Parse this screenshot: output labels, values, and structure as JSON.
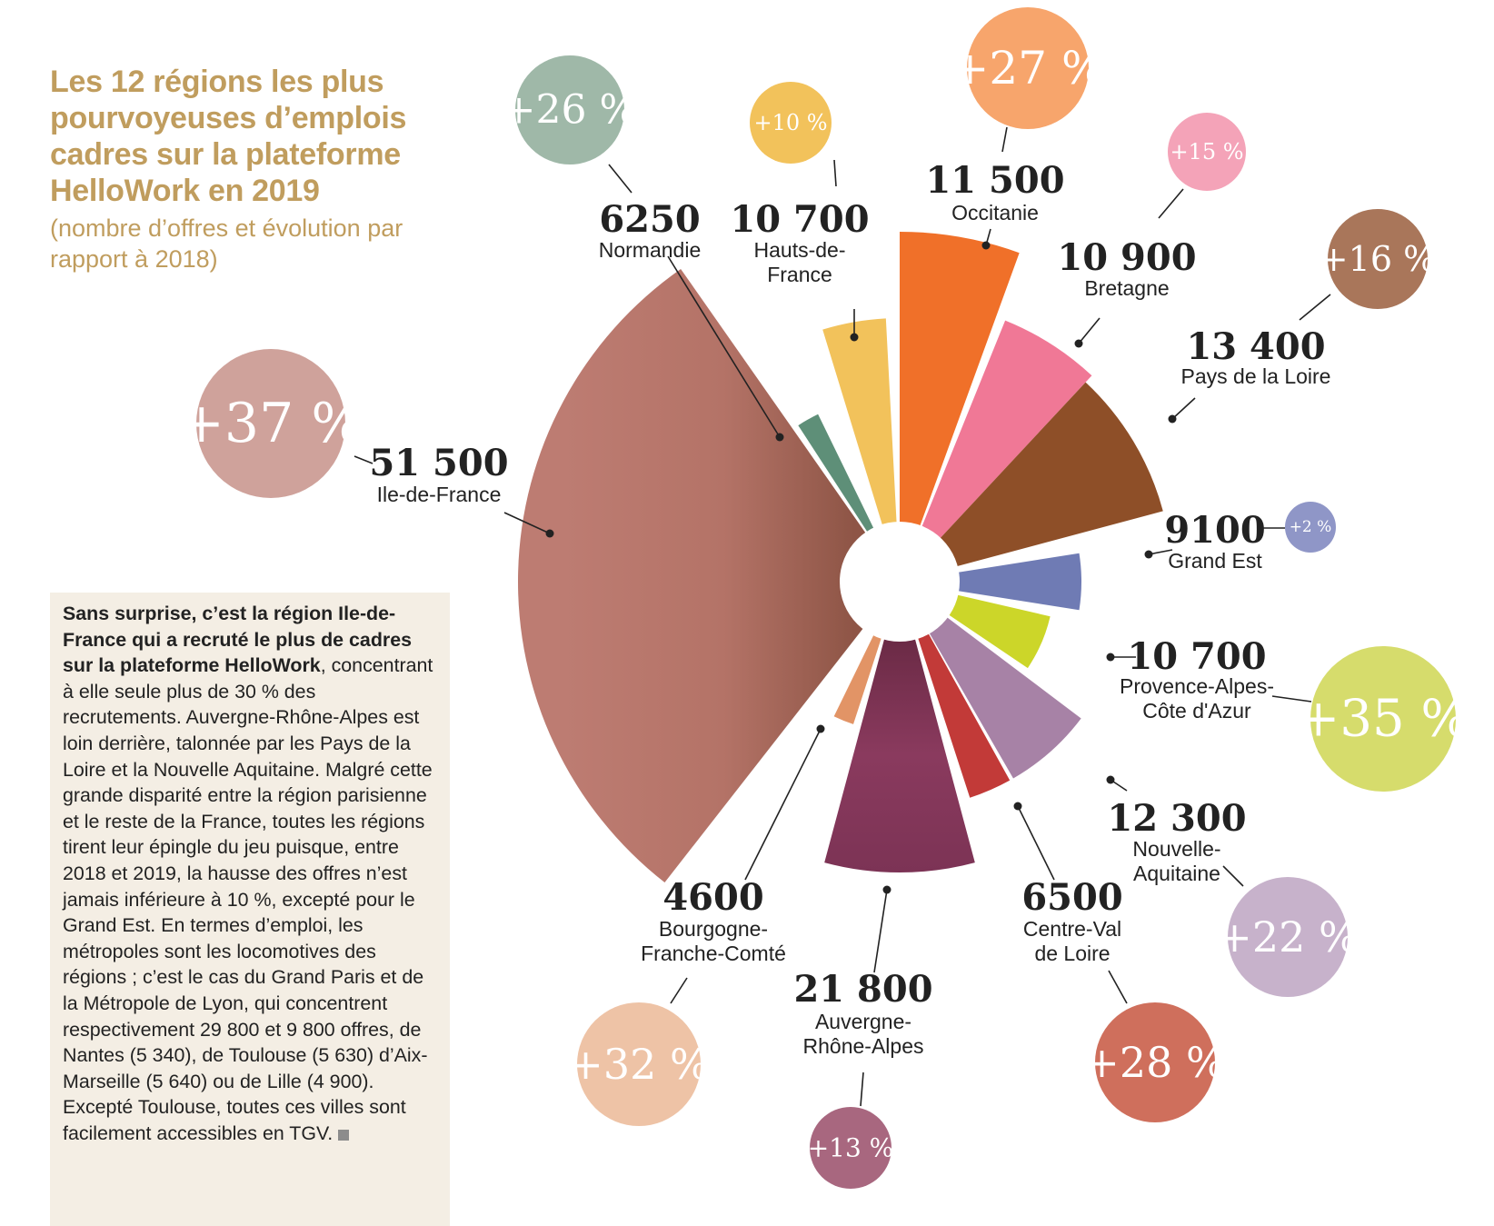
{
  "header": {
    "title": "Les 12 régions les plus pourvoyeuses d’emplois cadres sur la plateforme HelloWork en 2019",
    "subtitle": "(nombre d’offres et évolution par rapport à 2018)"
  },
  "textbox": {
    "lead": "Sans surprise, c’est la région Ile-de-France qui a recruté le plus de cadres sur la plateforme HelloWork",
    "body": ", concentrant à elle seule plus de 30 % des recrutements. Auvergne-Rhône-Alpes est loin derrière, talonnée par les Pays de la Loire et la Nouvelle Aquitaine. Malgré cette grande disparité entre la région parisienne et le reste de la France, toutes les régions tirent leur épingle du jeu puisque, entre 2018 et 2019, la hausse des offres n’est jamais inférieure à 10 %, excepté pour le Grand Est. En termes d’emploi, les métropoles sont les locomotives des régions ; c’est le cas du Grand Paris et de la Métropole de Lyon, qui concentrent respectivement 29 800 et 9 800 offres, de Nantes (5 340), de Toulouse (5 630) d’Aix-Marseille (5 640) ou de Lille (4 900). Excepté Toulouse, toutes ces villes sont facilement accessibles en TGV."
  },
  "chart_data": {
    "type": "polar-bar",
    "title": "Les 12 régions les plus pourvoyeuses d’emplois cadres sur la plateforme HelloWork en 2019",
    "categories": [
      "Normandie",
      "Hauts-de-France",
      "Occitanie",
      "Bretagne",
      "Pays de la Loire",
      "Grand Est",
      "Provence-Alpes-Côte d'Azur",
      "Nouvelle-Aquitaine",
      "Centre-Val de Loire",
      "Auvergne-Rhône-Alpes",
      "Bourgogne-Franche-Comté",
      "Ile-de-France"
    ],
    "series": [
      {
        "name": "nombre d’offres",
        "values": [
          6250,
          10700,
          11500,
          10900,
          13400,
          9100,
          10700,
          12300,
          6500,
          21800,
          4600,
          51500
        ]
      },
      {
        "name": "évolution par rapport à 2018 (%)",
        "values": [
          26,
          10,
          27,
          15,
          16,
          2,
          35,
          22,
          28,
          13,
          32,
          37
        ]
      }
    ],
    "items": [
      {
        "region": "Normandie",
        "value": "6250",
        "offers": 6250,
        "growth": 26,
        "growth_label": "+26 %",
        "color": "#5e8f78",
        "bubble_color": "#9fb8a8"
      },
      {
        "region": "Hauts-de-France",
        "value": "10 700",
        "offers": 10700,
        "growth": 10,
        "growth_label": "+10 %",
        "color": "#f2c25b",
        "bubble_color": "#f2c25b"
      },
      {
        "region": "Occitanie",
        "value": "11 500",
        "offers": 11500,
        "growth": 27,
        "growth_label": "+27 %",
        "color": "#f07029",
        "bubble_color": "#f7a56c"
      },
      {
        "region": "Bretagne",
        "value": "10 900",
        "offers": 10900,
        "growth": 15,
        "growth_label": "+15 %",
        "color": "#f07896",
        "bubble_color": "#f4a3b8"
      },
      {
        "region": "Pays de la Loire",
        "value": "13 400",
        "offers": 13400,
        "growth": 16,
        "growth_label": "+16 %",
        "color": "#8e4f28",
        "bubble_color": "#a9765a"
      },
      {
        "region": "Grand Est",
        "value": "9100",
        "offers": 9100,
        "growth": 2,
        "growth_label": "+2 %",
        "color": "#6f7bb4",
        "bubble_color": "#8f96c7"
      },
      {
        "region": "Provence-Alpes-Côte d'Azur",
        "value": "10 700",
        "offers": 10700,
        "growth": 35,
        "growth_label": "+35 %",
        "color": "#ccd629",
        "bubble_color": "#d6dc6c"
      },
      {
        "region": "Nouvelle-Aquitaine",
        "value": "12 300",
        "offers": 12300,
        "growth": 22,
        "growth_label": "+22 %",
        "color": "#a782a6",
        "bubble_color": "#c7b2cb"
      },
      {
        "region": "Centre-Val de Loire",
        "value": "6500",
        "offers": 6500,
        "growth": 28,
        "growth_label": "+28 %",
        "color": "#c23a38",
        "bubble_color": "#cf6f5c"
      },
      {
        "region": "Auvergne-Rhône-Alpes",
        "value": "21 800",
        "offers": 21800,
        "growth": 13,
        "growth_label": "+13 %",
        "color": "#8a3a5e",
        "bubble_color": "#a8677f"
      },
      {
        "region": "Bourgogne-Franche-Comté",
        "value": "4600",
        "offers": 4600,
        "growth": 32,
        "growth_label": "+32 %",
        "color": "#e29466",
        "bubble_color": "#eec3a6"
      },
      {
        "region": "Ile-de-France",
        "value": "51 500",
        "offers": 51500,
        "growth": 37,
        "growth_label": "+37 %",
        "color": "#b97a6f",
        "bubble_color": "#cfa29b"
      }
    ],
    "labels": [
      {
        "value": "6250",
        "name": [
          "Normandie"
        ]
      },
      {
        "value": "10 700",
        "name": [
          "Hauts-de-",
          "France"
        ]
      },
      {
        "value": "11 500",
        "name": [
          "Occitanie"
        ]
      },
      {
        "value": "10 900",
        "name": [
          "Bretagne"
        ]
      },
      {
        "value": "13 400",
        "name": [
          "Pays de la Loire"
        ]
      },
      {
        "value": "9100",
        "name": [
          "Grand Est"
        ]
      },
      {
        "value": "10 700",
        "name": [
          "Provence-Alpes-",
          "Côte d'Azur"
        ]
      },
      {
        "value": "12 300",
        "name": [
          "Nouvelle-",
          "Aquitaine"
        ]
      },
      {
        "value": "6500",
        "name": [
          "Centre-Val",
          "de Loire"
        ]
      },
      {
        "value": "21 800",
        "name": [
          "Auvergne-",
          "Rhône-Alpes"
        ]
      },
      {
        "value": "4600",
        "name": [
          "Bourgogne-",
          "Franche-Comté"
        ]
      },
      {
        "value": "51 500",
        "name": [
          "Ile-de-France"
        ]
      }
    ]
  }
}
